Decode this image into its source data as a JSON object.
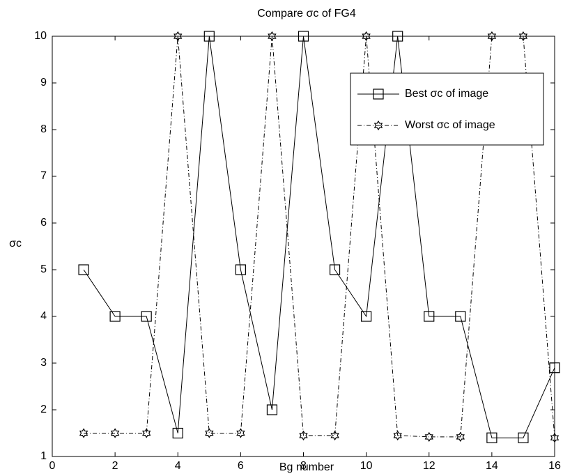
{
  "chart_data": {
    "type": "line",
    "title": "Compare σc of FG4",
    "x_label": "Bg number",
    "y_label": "σc",
    "x": [
      1,
      2,
      3,
      4,
      5,
      6,
      7,
      8,
      9,
      10,
      11,
      12,
      13,
      14,
      15,
      16
    ],
    "series": [
      {
        "name": "Best σc of image",
        "color": "#000000",
        "marker": "square",
        "linestyle": "solid",
        "values": [
          5,
          4,
          4,
          1.5,
          10,
          5,
          2,
          10,
          5,
          4,
          10,
          4,
          4,
          1.4,
          1.4,
          2.9
        ]
      },
      {
        "name": "Worst σc of image",
        "color": "#000000",
        "marker": "hexagram",
        "linestyle": "dashdot",
        "values": [
          1.5,
          1.5,
          1.5,
          10,
          1.5,
          1.5,
          10,
          1.45,
          1.45,
          10,
          1.45,
          1.42,
          1.42,
          10,
          10,
          1.4
        ]
      }
    ],
    "xlim": [
      0,
      16
    ],
    "ylim": [
      1,
      10
    ],
    "xticks": [
      0,
      2,
      4,
      6,
      8,
      10,
      12,
      14,
      16
    ],
    "yticks": [
      1,
      2,
      3,
      4,
      5,
      6,
      7,
      8,
      9,
      10
    ],
    "grid": false,
    "legend": "upper right"
  }
}
